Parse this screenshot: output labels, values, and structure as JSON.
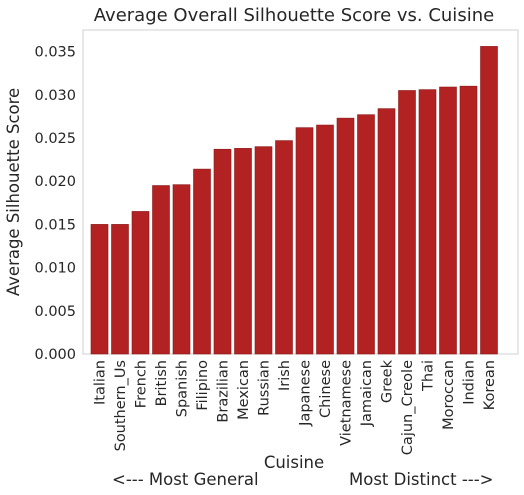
{
  "chart_data": {
    "type": "bar",
    "title": "Average Overall Silhouette Score vs. Cuisine",
    "xlabel": "Cuisine",
    "xlabel_sub_left": "<--- Most General",
    "xlabel_sub_right": "Most Distinct --->",
    "ylabel": "Average Silhouette Score",
    "ylim": [
      0,
      0.0375
    ],
    "yticks": [
      "0.000",
      "0.005",
      "0.010",
      "0.015",
      "0.020",
      "0.025",
      "0.030",
      "0.035"
    ],
    "grid": false,
    "bar_color": "#b22222",
    "categories": [
      "Italian",
      "Southern_Us",
      "French",
      "British",
      "Spanish",
      "Filipino",
      "Brazilian",
      "Mexican",
      "Russian",
      "Irish",
      "Japanese",
      "Chinese",
      "Vietnamese",
      "Jamaican",
      "Greek",
      "Cajun_Creole",
      "Thai",
      "Moroccan",
      "Indian",
      "Korean"
    ],
    "values": [
      0.015,
      0.015,
      0.0165,
      0.0195,
      0.0196,
      0.0214,
      0.0237,
      0.0238,
      0.024,
      0.0247,
      0.0262,
      0.0265,
      0.0273,
      0.0277,
      0.0284,
      0.0305,
      0.0306,
      0.0309,
      0.031,
      0.0356
    ]
  }
}
